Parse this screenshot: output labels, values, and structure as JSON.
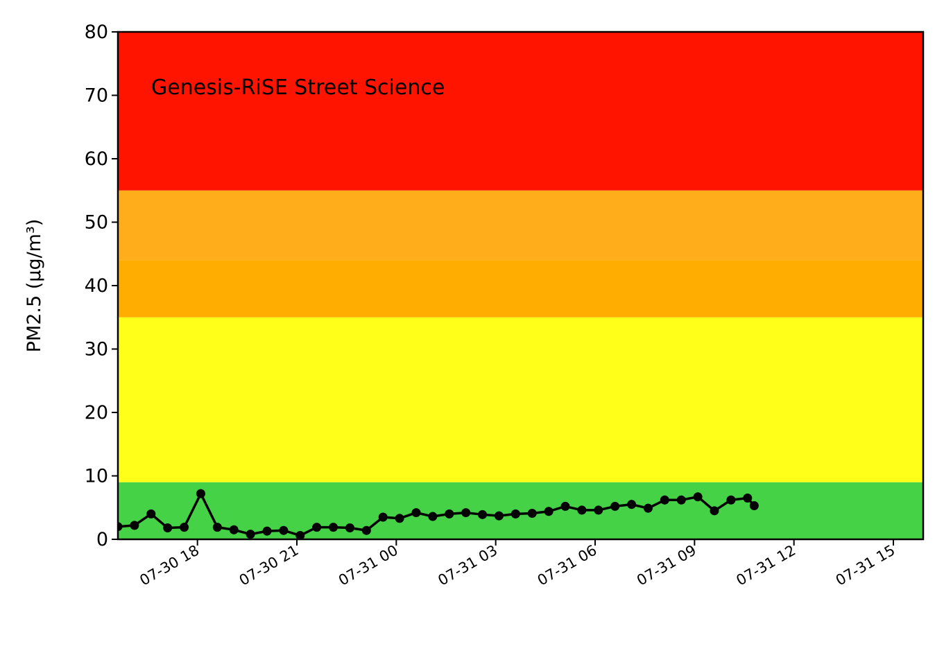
{
  "chart_data": {
    "type": "line",
    "annotation": "Genesis-RiSE Street Science",
    "ylabel": "PM2.5 (µg/m³)",
    "xlabel": "",
    "ylim": [
      0,
      80
    ],
    "yticks": [
      0,
      10,
      20,
      30,
      40,
      50,
      60,
      70,
      80
    ],
    "xlim": [
      "2018-07-30T15:36",
      "2018-07-31T15:54"
    ],
    "xticks": [
      {
        "t": "2018-07-30T18:00",
        "label": "07-30 18"
      },
      {
        "t": "2018-07-30T21:00",
        "label": "07-30 21"
      },
      {
        "t": "2018-07-31T00:00",
        "label": "07-31 00"
      },
      {
        "t": "2018-07-31T03:00",
        "label": "07-31 03"
      },
      {
        "t": "2018-07-31T06:00",
        "label": "07-31 06"
      },
      {
        "t": "2018-07-31T09:00",
        "label": "07-31 09"
      },
      {
        "t": "2018-07-31T12:00",
        "label": "07-31 12"
      },
      {
        "t": "2018-07-31T15:00",
        "label": "07-31 15"
      }
    ],
    "bands": [
      {
        "from": 0,
        "to": 9,
        "color": "#46d246"
      },
      {
        "from": 9,
        "to": 35,
        "color": "#ffff1a"
      },
      {
        "from": 35,
        "to": 44,
        "color": "#ffad00"
      },
      {
        "from": 44,
        "to": 55,
        "color": "#ffad1a"
      },
      {
        "from": 55,
        "to": 80,
        "color": "#ff1400"
      }
    ],
    "series": [
      {
        "color": "#000000",
        "x": [
          "2018-07-30T15:36",
          "2018-07-30T16:06",
          "2018-07-30T16:36",
          "2018-07-30T17:06",
          "2018-07-30T17:36",
          "2018-07-30T18:06",
          "2018-07-30T18:36",
          "2018-07-30T19:06",
          "2018-07-30T19:36",
          "2018-07-30T20:06",
          "2018-07-30T20:36",
          "2018-07-30T21:06",
          "2018-07-30T21:36",
          "2018-07-30T22:06",
          "2018-07-30T22:36",
          "2018-07-30T23:06",
          "2018-07-30T23:36",
          "2018-07-31T00:06",
          "2018-07-31T00:36",
          "2018-07-31T01:06",
          "2018-07-31T01:36",
          "2018-07-31T02:06",
          "2018-07-31T02:36",
          "2018-07-31T03:06",
          "2018-07-31T03:36",
          "2018-07-31T04:06",
          "2018-07-31T04:36",
          "2018-07-31T05:06",
          "2018-07-31T05:36",
          "2018-07-31T06:06",
          "2018-07-31T06:36",
          "2018-07-31T07:06",
          "2018-07-31T07:36",
          "2018-07-31T08:06",
          "2018-07-31T08:36",
          "2018-07-31T09:06",
          "2018-07-31T09:36",
          "2018-07-31T10:06",
          "2018-07-31T10:36",
          "2018-07-31T10:48"
        ],
        "y": [
          2.0,
          2.2,
          4.0,
          1.8,
          1.9,
          7.2,
          1.9,
          1.5,
          0.8,
          1.3,
          1.4,
          0.6,
          1.9,
          1.9,
          1.8,
          1.4,
          3.5,
          3.3,
          4.2,
          3.6,
          4.0,
          4.2,
          3.9,
          3.7,
          4.0,
          4.1,
          4.4,
          5.2,
          4.6,
          4.6,
          5.2,
          5.5,
          4.9,
          6.2,
          6.2,
          6.7,
          4.5,
          6.2,
          6.5,
          5.3
        ]
      }
    ]
  }
}
